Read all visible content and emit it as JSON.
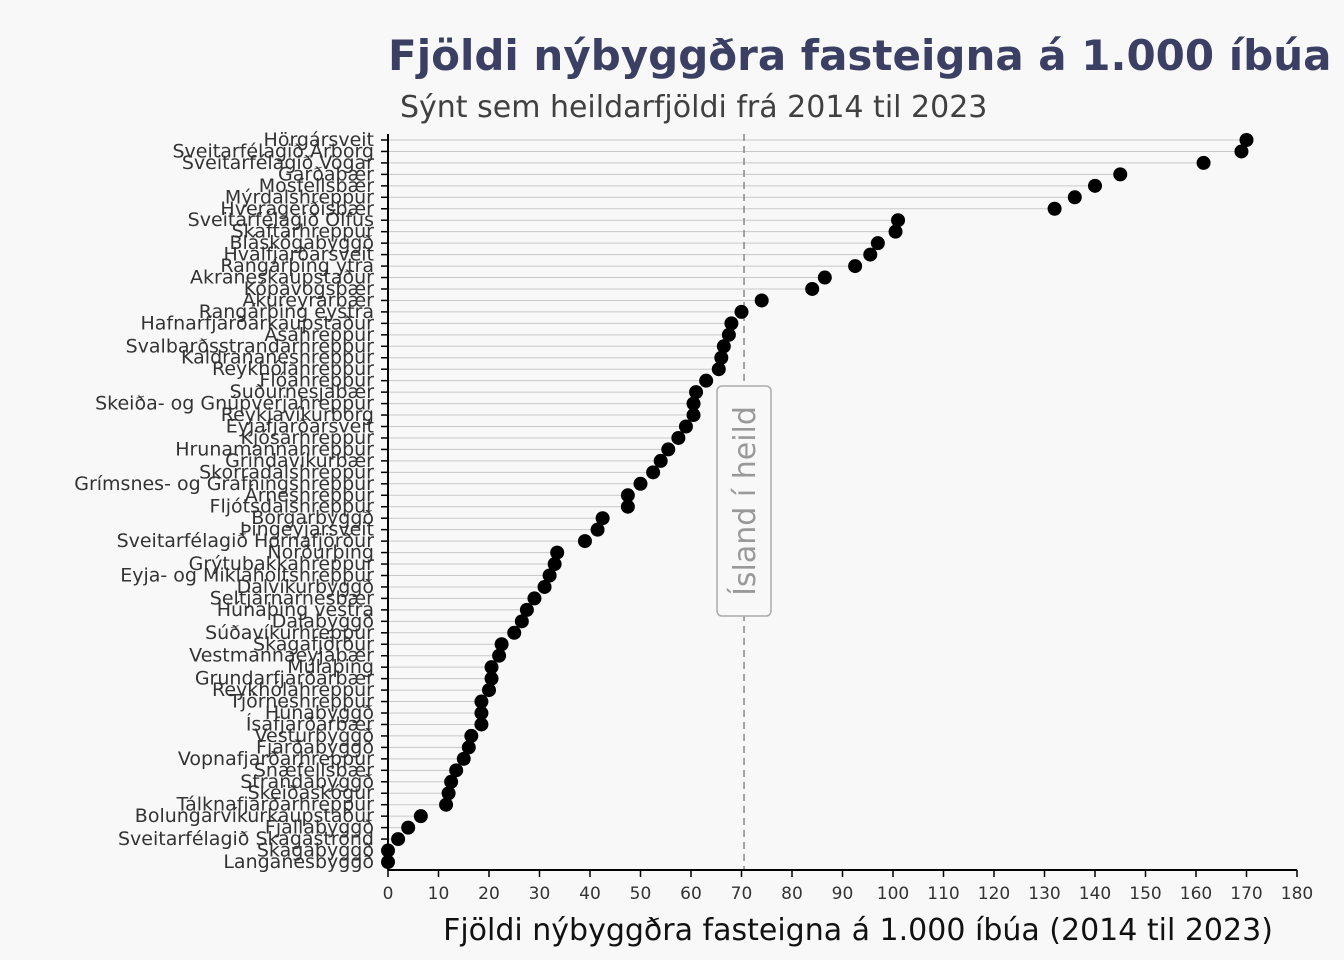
{
  "chart_data": {
    "type": "dot",
    "title": "Fjöldi nýbyggðra fasteigna á 1.000 íbúa í s",
    "subtitle": "Sýnt sem heildarfjöldi frá 2014 til 2023",
    "xlabel": "Fjöldi nýbyggðra fasteigna á 1.000 íbúa (2014 til 2023)",
    "xlim": [
      0,
      180
    ],
    "xticks": [
      0,
      10,
      20,
      30,
      40,
      50,
      60,
      70,
      80,
      90,
      100,
      110,
      120,
      130,
      140,
      150,
      160,
      170,
      180
    ],
    "grid": "horizontal lines per category",
    "reference_line": {
      "value": 70.5,
      "label": "Ísland í heild"
    },
    "colors": {
      "point": "#000000",
      "reference": "#888888",
      "title": "#3b3f63"
    },
    "points": [
      {
        "category": "Hörgársveit",
        "value": 170
      },
      {
        "category": "Sveitarfélagið Árborg",
        "value": 169
      },
      {
        "category": "Sveitarfélagið Vogar",
        "value": 161.5
      },
      {
        "category": "Garðabær",
        "value": 145
      },
      {
        "category": "Mosfellsbær",
        "value": 140
      },
      {
        "category": "Mýrdalshreppur",
        "value": 136
      },
      {
        "category": "Hveragerðisbær",
        "value": 132
      },
      {
        "category": "Sveitarfélagið Ölfus",
        "value": 101
      },
      {
        "category": "Skaftárhreppur",
        "value": 100.5
      },
      {
        "category": "Bláskógabyggð",
        "value": 97
      },
      {
        "category": "Hvalfjarðarsveit",
        "value": 95.5
      },
      {
        "category": "Rangárþing ytra",
        "value": 92.5
      },
      {
        "category": "Akraneskaupstaður",
        "value": 86.5
      },
      {
        "category": "Kópavogsbær",
        "value": 84
      },
      {
        "category": "Akureyrarbær",
        "value": 74
      },
      {
        "category": "Rangárþing eystra",
        "value": 70
      },
      {
        "category": "Hafnarfjarðarkaupstaður",
        "value": 68
      },
      {
        "category": "Ásahreppur",
        "value": 67.5
      },
      {
        "category": "Svalbarðsstrandarhreppur",
        "value": 66.5
      },
      {
        "category": "Kaldrananeshreppur",
        "value": 66
      },
      {
        "category": "Reykhólahreppur",
        "value": 65.5
      },
      {
        "category": "Flóahreppur",
        "value": 63
      },
      {
        "category": "Suðurnesjabær",
        "value": 61
      },
      {
        "category": "Skeiða- og Gnúpverjahreppur",
        "value": 60.5
      },
      {
        "category": "Reykjavíkurborg",
        "value": 60.5
      },
      {
        "category": "Eyjafjarðarsveit",
        "value": 59
      },
      {
        "category": "Kjósarhreppur",
        "value": 57.5
      },
      {
        "category": "Hrunamannahreppur",
        "value": 55.5
      },
      {
        "category": "Grindavíkurbær",
        "value": 54
      },
      {
        "category": "Skorradalshreppur",
        "value": 52.5
      },
      {
        "category": "Grímsnes- og Grafningshreppur",
        "value": 50
      },
      {
        "category": "Árneshreppur",
        "value": 47.5
      },
      {
        "category": "Fljótsdalshreppur",
        "value": 47.5
      },
      {
        "category": "Borgarbyggð",
        "value": 42.5
      },
      {
        "category": "Þingeyjarsveit",
        "value": 41.5
      },
      {
        "category": "Sveitarfélagið Hornafjörður",
        "value": 39
      },
      {
        "category": "Norðurþing",
        "value": 33.5
      },
      {
        "category": "Grýtubakkahreppur",
        "value": 33
      },
      {
        "category": "Eyja- og Miklaholtshreppur",
        "value": 32
      },
      {
        "category": "Dalvíkurbyggð",
        "value": 31
      },
      {
        "category": "Seltjarnarnesbær",
        "value": 29
      },
      {
        "category": "Húnaþing vestra",
        "value": 27.5
      },
      {
        "category": "Dalabyggð",
        "value": 26.5
      },
      {
        "category": "Súðavíkurhreppur",
        "value": 25
      },
      {
        "category": "Skagafjörður",
        "value": 22.5
      },
      {
        "category": "Vestmannaeyjabær",
        "value": 22
      },
      {
        "category": "Múlaþing",
        "value": 20.5
      },
      {
        "category": "Grundarfjarðarbær",
        "value": 20.5
      },
      {
        "category": "Reykhólahreppur",
        "value": 20
      },
      {
        "category": "Tjörneshreppur",
        "value": 18.5
      },
      {
        "category": "Húnabyggð",
        "value": 18.5
      },
      {
        "category": "Ísafjarðarbær",
        "value": 18.5
      },
      {
        "category": "Vesturbyggð",
        "value": 16.5
      },
      {
        "category": "Fjarðabyggð",
        "value": 16
      },
      {
        "category": "Vopnafjarðarhreppur",
        "value": 15
      },
      {
        "category": "Snæfellsbær",
        "value": 13.5
      },
      {
        "category": "Strandabyggð",
        "value": 12.5
      },
      {
        "category": "Skeiðaskógur",
        "value": 12
      },
      {
        "category": "Tálknafjarðarhreppur",
        "value": 11.5
      },
      {
        "category": "Bolungarvíkurkaupstaður",
        "value": 6.5
      },
      {
        "category": "Fjallabyggð",
        "value": 4
      },
      {
        "category": "Sveitarfélagið Skagaströnd",
        "value": 2
      },
      {
        "category": "Skagabyggð",
        "value": 0
      },
      {
        "category": "Langanesbyggð",
        "value": 0
      }
    ]
  }
}
